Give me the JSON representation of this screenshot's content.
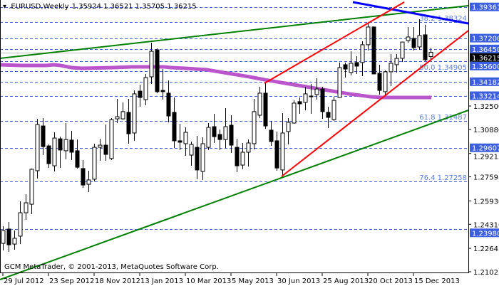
{
  "header": {
    "symbol": ".EURUSD,Weekly",
    "ohlc": "1.35924 1.36521 1.35705 1.36215"
  },
  "copyright": "GCM MetaTrader, © 2001-2013, MetaQuotes Software Corp.",
  "colors": {
    "level_line": "#3c5fe0",
    "label_bg": "#3c5fe0",
    "bull_fill": "#ffffff",
    "bear_fill": "#000000",
    "trend_green": "#008000",
    "trend_red": "#ff0000",
    "trend_blue": "#0000ff",
    "moving_average": "#bb55cc",
    "current_price_line": "#c0c0c0"
  },
  "chart_data": {
    "type": "candlestick",
    "title": ".EURUSD,Weekly",
    "ylim": [
      1.2102,
      1.3984
    ],
    "grid": false,
    "x_tick_labels": [
      "29 Jul 2012",
      "23 Sep 2012",
      "18 Nov 2012",
      "13 Jan 2013",
      "10 Mar 2013",
      "5 May 2013",
      "30 Jun 2013",
      "25 Aug 2013",
      "20 Oct 2013",
      "15 Dec 2013"
    ],
    "y_tick_labels": [
      "1.32500",
      "1.30880",
      "1.29215",
      "1.27595",
      "1.25930",
      "1.24310",
      "1.22645",
      "1.21025"
    ],
    "current_price": "1.36215",
    "price_levels": [
      {
        "value": 1.39361,
        "label": "1.39361"
      },
      {
        "value": 1.372,
        "label": "1.37200"
      },
      {
        "value": 1.3645,
        "label": "1.36450"
      },
      {
        "value": 1.356,
        "label": "1.35600"
      },
      {
        "value": 1.34182,
        "label": "1.34182"
      },
      {
        "value": 1.33214,
        "label": "1.33214"
      },
      {
        "value": 1.29607,
        "label": "1.29607"
      },
      {
        "value": 1.2398,
        "label": "1.23980"
      }
    ],
    "fibonacci_levels": [
      {
        "value": 1.38324,
        "label": "38.2 1.38324"
      },
      {
        "value": 1.34905,
        "label": "50.0 1.34905"
      },
      {
        "value": 1.31487,
        "label": "61.8 1.31487"
      },
      {
        "value": 1.27258,
        "label": "76.4 1.27258"
      }
    ],
    "candles": [
      [
        1.2299,
        1.2418,
        1.225,
        1.2388
      ],
      [
        1.2398,
        1.2447,
        1.224,
        1.2289
      ],
      [
        1.2294,
        1.2388,
        1.2255,
        1.2334
      ],
      [
        1.2349,
        1.259,
        1.2294,
        1.2511
      ],
      [
        1.2511,
        1.2639,
        1.2462,
        1.258
      ],
      [
        1.257,
        1.2817,
        1.2501,
        1.2812
      ],
      [
        1.2802,
        1.3161,
        1.2748,
        1.3122
      ],
      [
        1.3112,
        1.3166,
        1.291,
        1.2969
      ],
      [
        1.2974,
        1.2984,
        1.2821,
        1.2851
      ],
      [
        1.2836,
        1.3068,
        1.2797,
        1.3028
      ],
      [
        1.3023,
        1.3038,
        1.2821,
        1.2945
      ],
      [
        1.294,
        1.3132,
        1.2881,
        1.3018
      ],
      [
        1.3014,
        1.3078,
        1.2876,
        1.293
      ],
      [
        1.294,
        1.3018,
        1.2817,
        1.2826
      ],
      [
        1.2817,
        1.2876,
        1.2683,
        1.2703
      ],
      [
        1.2708,
        1.2802,
        1.2654,
        1.2738
      ],
      [
        1.2743,
        1.2989,
        1.2728,
        1.2964
      ],
      [
        1.2964,
        1.3023,
        1.2871,
        1.2979
      ],
      [
        1.2979,
        1.3122,
        1.2871,
        1.2915
      ],
      [
        1.2886,
        1.3166,
        1.2876,
        1.3156
      ],
      [
        1.3161,
        1.3299,
        1.3132,
        1.3176
      ],
      [
        1.3161,
        1.3275,
        1.3156,
        1.3211
      ],
      [
        1.3206,
        1.3299,
        1.2989,
        1.3058
      ],
      [
        1.3063,
        1.3358,
        1.3009,
        1.3334
      ],
      [
        1.3353,
        1.3398,
        1.3245,
        1.3309
      ],
      [
        1.3294,
        1.3472,
        1.3255,
        1.3447
      ],
      [
        1.3452,
        1.3688,
        1.3403,
        1.3629
      ],
      [
        1.3639,
        1.3649,
        1.3339,
        1.3349
      ],
      [
        1.3358,
        1.3506,
        1.3294,
        1.3349
      ],
      [
        1.3339,
        1.3427,
        1.3137,
        1.3181
      ],
      [
        1.3206,
        1.3309,
        1.2959,
        1.3009
      ],
      [
        1.3009,
        1.3127,
        1.2945,
        1.2999
      ],
      [
        1.2989,
        1.3102,
        1.2905,
        1.3068
      ],
      [
        1.291,
        1.3004,
        1.2836,
        1.2984
      ],
      [
        1.2964,
        1.3043,
        1.2743,
        1.2807
      ],
      [
        1.2797,
        1.3033,
        1.2738,
        1.2989
      ],
      [
        1.2964,
        1.3132,
        1.2945,
        1.3102
      ],
      [
        1.3107,
        1.3196,
        1.2994,
        1.3038
      ],
      [
        1.3053,
        1.3087,
        1.2945,
        1.3018
      ],
      [
        1.3018,
        1.3235,
        1.2959,
        1.3107
      ],
      [
        1.3117,
        1.3186,
        1.2925,
        1.2979
      ],
      [
        1.2964,
        1.3023,
        1.2792,
        1.2836
      ],
      [
        1.2841,
        1.2994,
        1.2812,
        1.293
      ],
      [
        1.293,
        1.3018,
        1.2831,
        1.2994
      ],
      [
        1.2989,
        1.3299,
        1.2949,
        1.3211
      ],
      [
        1.3186,
        1.3383,
        1.3166,
        1.3339
      ],
      [
        1.3339,
        1.3408,
        1.3092,
        1.3112
      ],
      [
        1.3083,
        1.3147,
        1.2974,
        1.3004
      ],
      [
        1.3009,
        1.3073,
        1.2802,
        1.2821
      ],
      [
        1.2807,
        1.3201,
        1.2757,
        1.3063
      ],
      [
        1.3073,
        1.3166,
        1.2984,
        1.3137
      ],
      [
        1.3132,
        1.3289,
        1.3127,
        1.327
      ],
      [
        1.328,
        1.3309,
        1.3196,
        1.3265
      ],
      [
        1.3275,
        1.3383,
        1.322,
        1.3334
      ],
      [
        1.3319,
        1.3403,
        1.3196,
        1.3314
      ],
      [
        1.3329,
        1.3442,
        1.3294,
        1.3368
      ],
      [
        1.3368,
        1.3383,
        1.3161,
        1.3211
      ],
      [
        1.3206,
        1.3245,
        1.3097,
        1.3171
      ],
      [
        1.3156,
        1.3314,
        1.3147,
        1.3289
      ],
      [
        1.3309,
        1.3551,
        1.3309,
        1.3516
      ],
      [
        1.3536,
        1.3551,
        1.3447,
        1.3506
      ],
      [
        1.3482,
        1.3629,
        1.3462,
        1.3546
      ],
      [
        1.3551,
        1.3595,
        1.3472,
        1.3526
      ],
      [
        1.3551,
        1.3698,
        1.3457,
        1.3674
      ],
      [
        1.3674,
        1.3821,
        1.3634,
        1.3797
      ],
      [
        1.3797,
        1.3802,
        1.3472,
        1.3472
      ],
      [
        1.3477,
        1.3536,
        1.3329,
        1.3358
      ],
      [
        1.3349,
        1.3496,
        1.3329,
        1.3487
      ],
      [
        1.3487,
        1.361,
        1.3388,
        1.3546
      ],
      [
        1.3536,
        1.361,
        1.3482,
        1.358
      ],
      [
        1.358,
        1.3693,
        1.3555,
        1.3693
      ],
      [
        1.3703,
        1.3797,
        1.3688,
        1.3728
      ],
      [
        1.3718,
        1.3797,
        1.3634,
        1.3654
      ],
      [
        1.3659,
        1.3851,
        1.3639,
        1.3738
      ],
      [
        1.3743,
        1.3812,
        1.356,
        1.357
      ],
      [
        1.35924,
        1.36521,
        1.35705,
        1.36215
      ]
    ]
  }
}
